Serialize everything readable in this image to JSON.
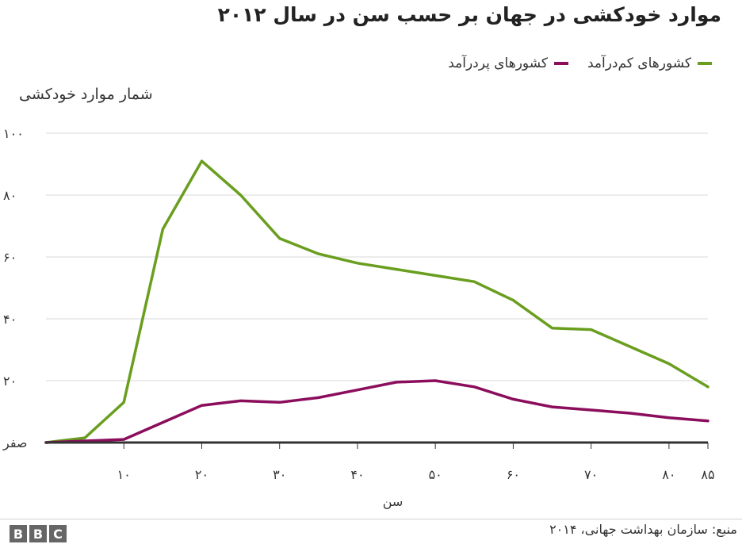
{
  "title": "موارد خودکشی در جهان بر حسب سن در سال ۲۰۱۲",
  "legend": {
    "low_income": "کشورهای کم‌درآمد",
    "high_income": "کشورهای پردرآمد"
  },
  "colors": {
    "low_income": "#6a9e1f",
    "high_income": "#8b0d5c",
    "grid": "#d9d9d9",
    "axis": "#333333"
  },
  "source": "منبع: سازمان بهداشت جهانی، ۲۰۱۴",
  "logo": "BBC",
  "chart_data": {
    "type": "line",
    "ylabel": "شمار موارد خودکشی",
    "xlabel": "سن",
    "xlim": [
      0,
      85
    ],
    "ylim": [
      0,
      100
    ],
    "y_ticks": [
      0,
      20,
      40,
      60,
      80,
      100
    ],
    "y_tick_labels": [
      "صفر",
      "۲۰",
      "۴۰",
      "۶۰",
      "۸۰",
      "۱۰۰"
    ],
    "x_ticks": [
      10,
      20,
      30,
      40,
      50,
      60,
      70,
      80,
      85
    ],
    "x_tick_labels": [
      "۱۰",
      "۲۰",
      "۳۰",
      "۴۰",
      "۵۰",
      "۶۰",
      "۷۰",
      "۸۰",
      "۸۵"
    ],
    "grid": true,
    "series": [
      {
        "name": "کشورهای کم‌درآمد",
        "key": "low_income",
        "x": [
          0,
          5,
          10,
          15,
          20,
          25,
          30,
          35,
          40,
          45,
          50,
          55,
          60,
          65,
          70,
          75,
          80,
          85
        ],
        "y": [
          0,
          1.5,
          13,
          69,
          91,
          80,
          66,
          61,
          58,
          56,
          54,
          52,
          46,
          37,
          36.5,
          31,
          25.5,
          18
        ]
      },
      {
        "name": "کشورهای پردرآمد",
        "key": "high_income",
        "x": [
          0,
          5,
          10,
          15,
          20,
          25,
          30,
          35,
          40,
          45,
          50,
          55,
          60,
          65,
          70,
          75,
          80,
          85
        ],
        "y": [
          0,
          0.5,
          1,
          6.5,
          12,
          13.5,
          13,
          14.5,
          17,
          19.5,
          20,
          18,
          14,
          11.5,
          10.5,
          9.5,
          8,
          7
        ]
      }
    ]
  }
}
